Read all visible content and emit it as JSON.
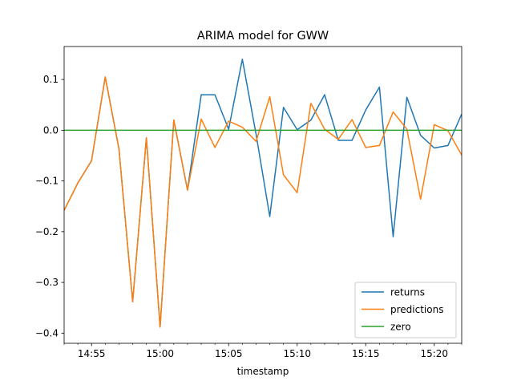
{
  "chart_data": {
    "type": "line",
    "title": "ARIMA model for GWW",
    "xlabel": "timestamp",
    "ylabel": "",
    "xlim": [
      "14:53",
      "15:22"
    ],
    "ylim": [
      -0.42,
      0.165
    ],
    "x_ticks": [
      "14:55",
      "15:00",
      "15:05",
      "15:10",
      "15:15",
      "15:20"
    ],
    "y_ticks": [
      0.1,
      0.0,
      -0.1,
      -0.2,
      -0.3,
      -0.4
    ],
    "y_tick_labels": [
      "0.1",
      "0.0",
      "−0.1",
      "−0.2",
      "−0.3",
      "−0.4"
    ],
    "legend_position": "lower-right",
    "grid": false,
    "x": [
      "14:53",
      "14:54",
      "14:55",
      "14:56",
      "14:57",
      "14:58",
      "14:59",
      "15:00",
      "15:01",
      "15:02",
      "15:03",
      "15:04",
      "15:05",
      "15:06",
      "15:07",
      "15:08",
      "15:09",
      "15:10",
      "15:11",
      "15:12",
      "15:13",
      "15:14",
      "15:15",
      "15:16",
      "15:17",
      "15:18",
      "15:19",
      "15:20",
      "15:21",
      "15:22"
    ],
    "series": [
      {
        "name": "returns",
        "color": "#1f77b4",
        "values": [
          -0.158,
          -0.104,
          -0.06,
          0.105,
          -0.037,
          -0.338,
          -0.015,
          -0.388,
          0.02,
          -0.118,
          0.07,
          0.07,
          0.002,
          0.14,
          -0.008,
          -0.17,
          0.045,
          0.001,
          0.02,
          0.07,
          -0.02,
          -0.02,
          0.04,
          0.085,
          -0.21,
          0.065,
          -0.01,
          -0.035,
          -0.03,
          0.032
        ]
      },
      {
        "name": "predictions",
        "color": "#ff7f0e",
        "values": [
          -0.158,
          -0.104,
          -0.06,
          0.105,
          -0.037,
          -0.338,
          -0.015,
          -0.388,
          0.02,
          -0.118,
          0.022,
          -0.034,
          0.018,
          0.006,
          -0.022,
          0.066,
          -0.088,
          -0.123,
          0.053,
          0.002,
          -0.018,
          0.021,
          -0.034,
          -0.03,
          0.036,
          0.002,
          -0.136,
          0.011,
          -0.001,
          -0.049
        ]
      },
      {
        "name": "zero",
        "color": "#2ca02c",
        "values": [
          0,
          0,
          0,
          0,
          0,
          0,
          0,
          0,
          0,
          0,
          0,
          0,
          0,
          0,
          0,
          0,
          0,
          0,
          0,
          0,
          0,
          0,
          0,
          0,
          0,
          0,
          0,
          0,
          0,
          0
        ]
      }
    ]
  }
}
